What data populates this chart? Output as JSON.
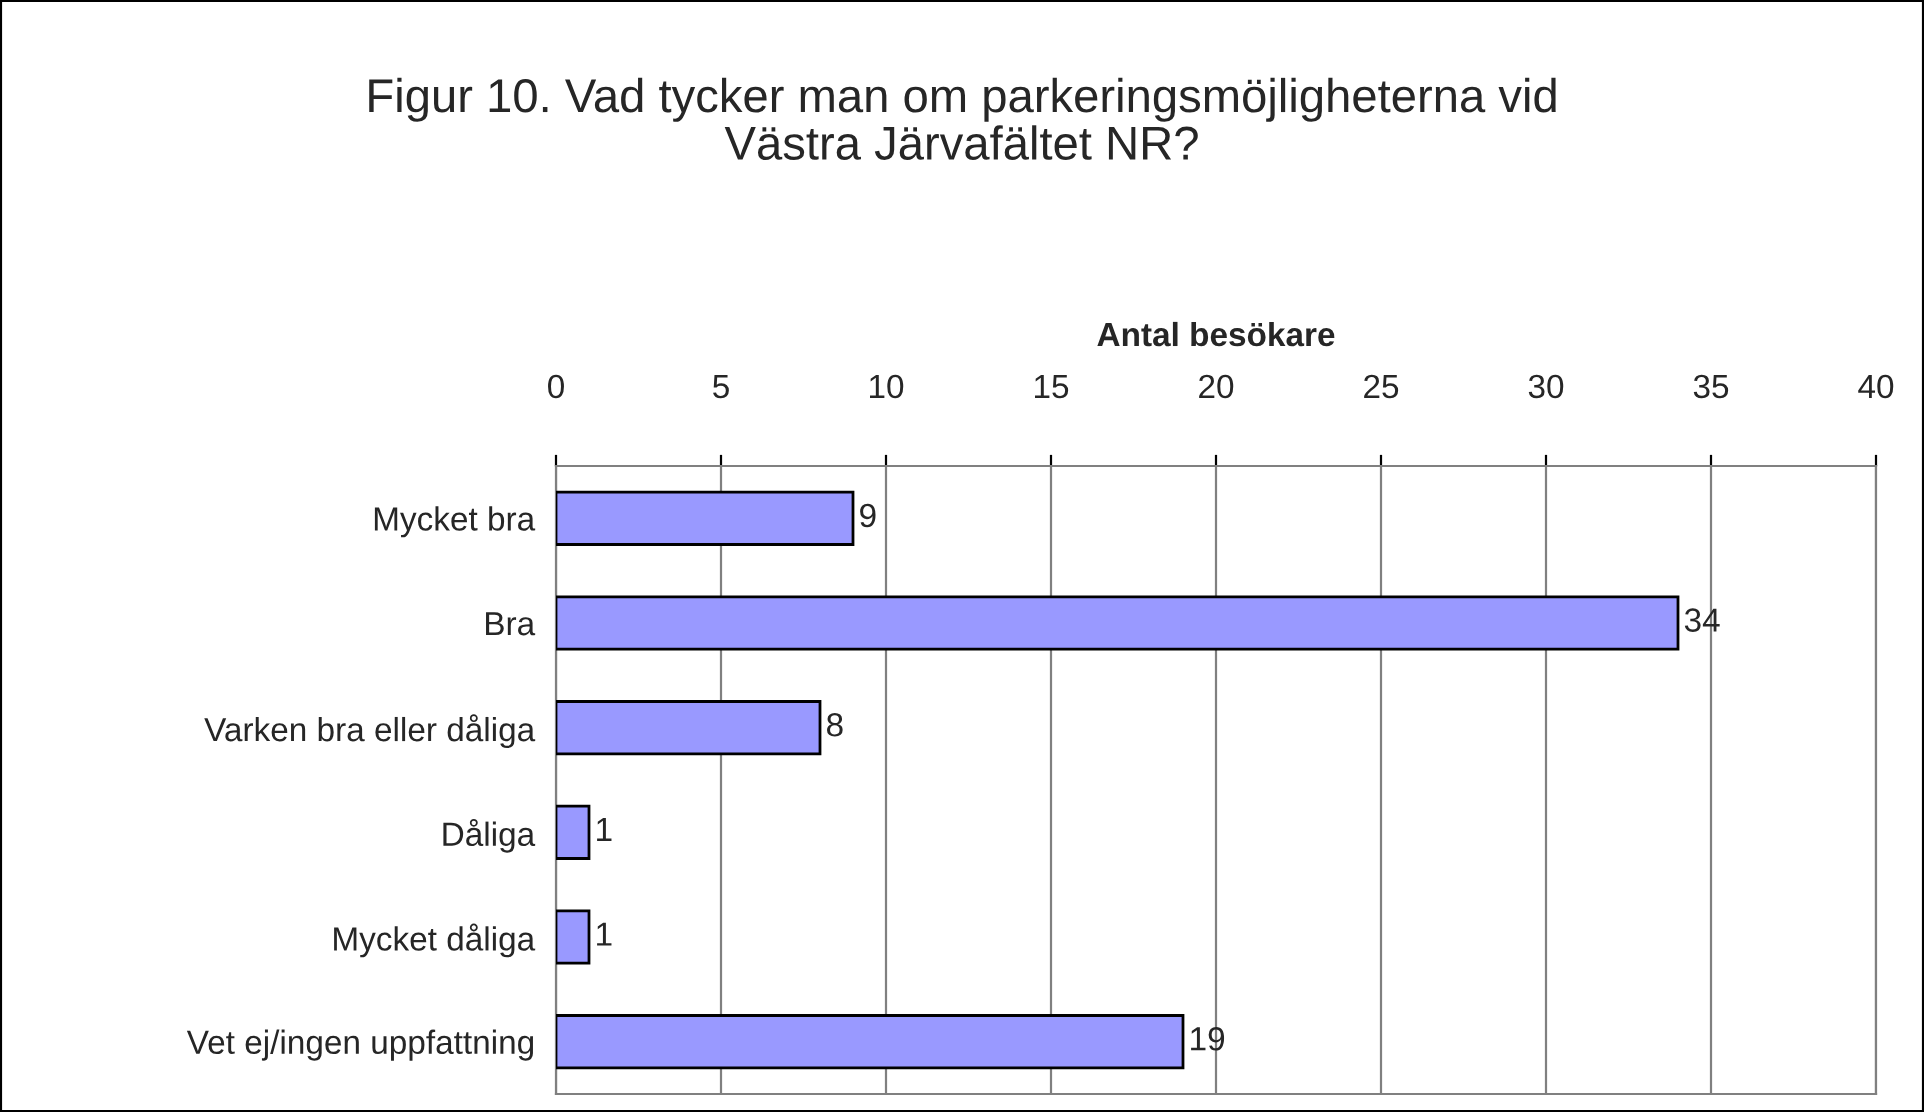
{
  "chart_data": {
    "type": "bar",
    "orientation": "horizontal",
    "title": "Figur 10. Vad tycker man om parkeringsmöjligheterna vid\nVästra Järvafältet NR?",
    "xlabel": "Antal besökare",
    "categories": [
      "Mycket bra",
      "Bra",
      "Varken bra eller dåliga",
      "Dåliga",
      "Mycket dåliga",
      "Vet ej/ingen uppfattning"
    ],
    "values": [
      9,
      34,
      8,
      1,
      1,
      19
    ],
    "color": "#9999ff",
    "xlim": [
      0,
      40
    ],
    "xticks": [
      0,
      5,
      10,
      15,
      20,
      25,
      30,
      35,
      40
    ],
    "grid": "x",
    "data_labels": true
  }
}
